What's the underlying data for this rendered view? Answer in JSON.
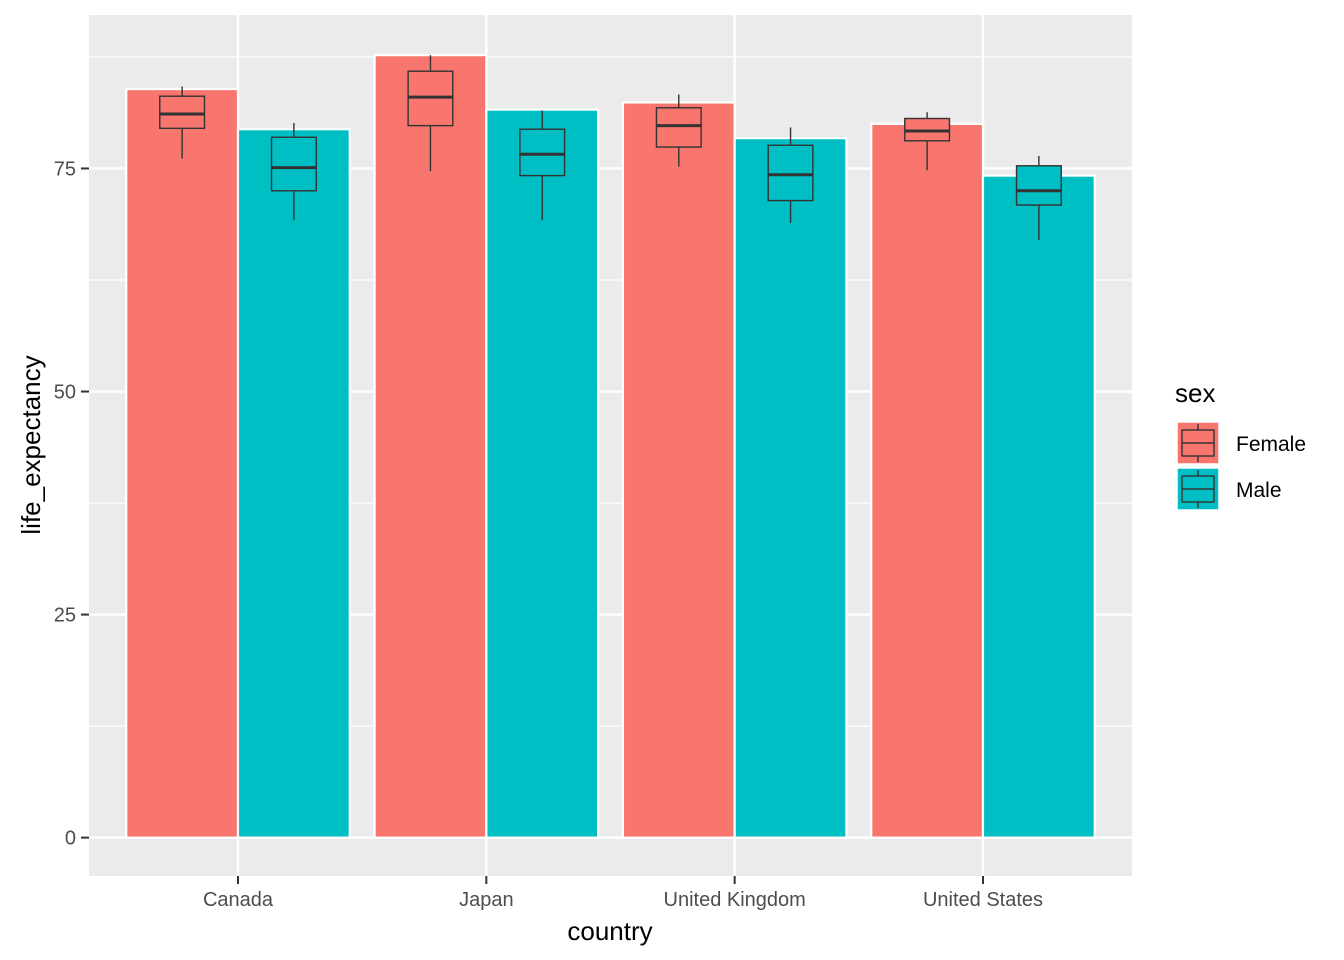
{
  "chart_data": {
    "type": "bar",
    "title": "",
    "xlabel": "country",
    "ylabel": "life_expectancy",
    "categories": [
      "Canada",
      "Japan",
      "United Kingdom",
      "United States"
    ],
    "ylim": [
      -4.3,
      92.2
    ],
    "yticks": [
      0,
      25,
      50,
      75
    ],
    "ytick_labels": [
      "0",
      "25",
      "50",
      "75"
    ],
    "grid": true,
    "legend_position": "right",
    "legend_title": "sex",
    "colors": {
      "Female": "#F8766D",
      "Male": "#00BFC4",
      "panel": "#EBEBEB",
      "grid": "#FFFFFF",
      "box": "#333333"
    },
    "series": [
      {
        "name": "Female",
        "values": [
          83.9,
          87.7,
          82.4,
          80.0
        ]
      },
      {
        "name": "Male",
        "values": [
          79.4,
          81.6,
          78.4,
          74.2
        ]
      }
    ],
    "boxplots": [
      {
        "category": "Canada",
        "series": "Female",
        "whisker_low": 76.1,
        "q1": 79.5,
        "median": 81.1,
        "q3": 83.1,
        "whisker_high": 84.2
      },
      {
        "category": "Canada",
        "series": "Male",
        "whisker_low": 69.2,
        "q1": 72.5,
        "median": 75.1,
        "q3": 78.5,
        "whisker_high": 80.1
      },
      {
        "category": "Japan",
        "series": "Female",
        "whisker_low": 74.7,
        "q1": 79.8,
        "median": 83.0,
        "q3": 85.9,
        "whisker_high": 87.7
      },
      {
        "category": "Japan",
        "series": "Male",
        "whisker_low": 69.2,
        "q1": 74.2,
        "median": 76.6,
        "q3": 79.4,
        "whisker_high": 81.5
      },
      {
        "category": "United Kingdom",
        "series": "Female",
        "whisker_low": 75.2,
        "q1": 77.4,
        "median": 79.8,
        "q3": 81.8,
        "whisker_high": 83.3
      },
      {
        "category": "United Kingdom",
        "series": "Male",
        "whisker_low": 68.9,
        "q1": 71.4,
        "median": 74.3,
        "q3": 77.6,
        "whisker_high": 79.6
      },
      {
        "category": "United States",
        "series": "Female",
        "whisker_low": 74.8,
        "q1": 78.1,
        "median": 79.2,
        "q3": 80.6,
        "whisker_high": 81.3
      },
      {
        "category": "United States",
        "series": "Male",
        "whisker_low": 67.0,
        "q1": 70.9,
        "median": 72.5,
        "q3": 75.3,
        "whisker_high": 76.4
      }
    ]
  }
}
